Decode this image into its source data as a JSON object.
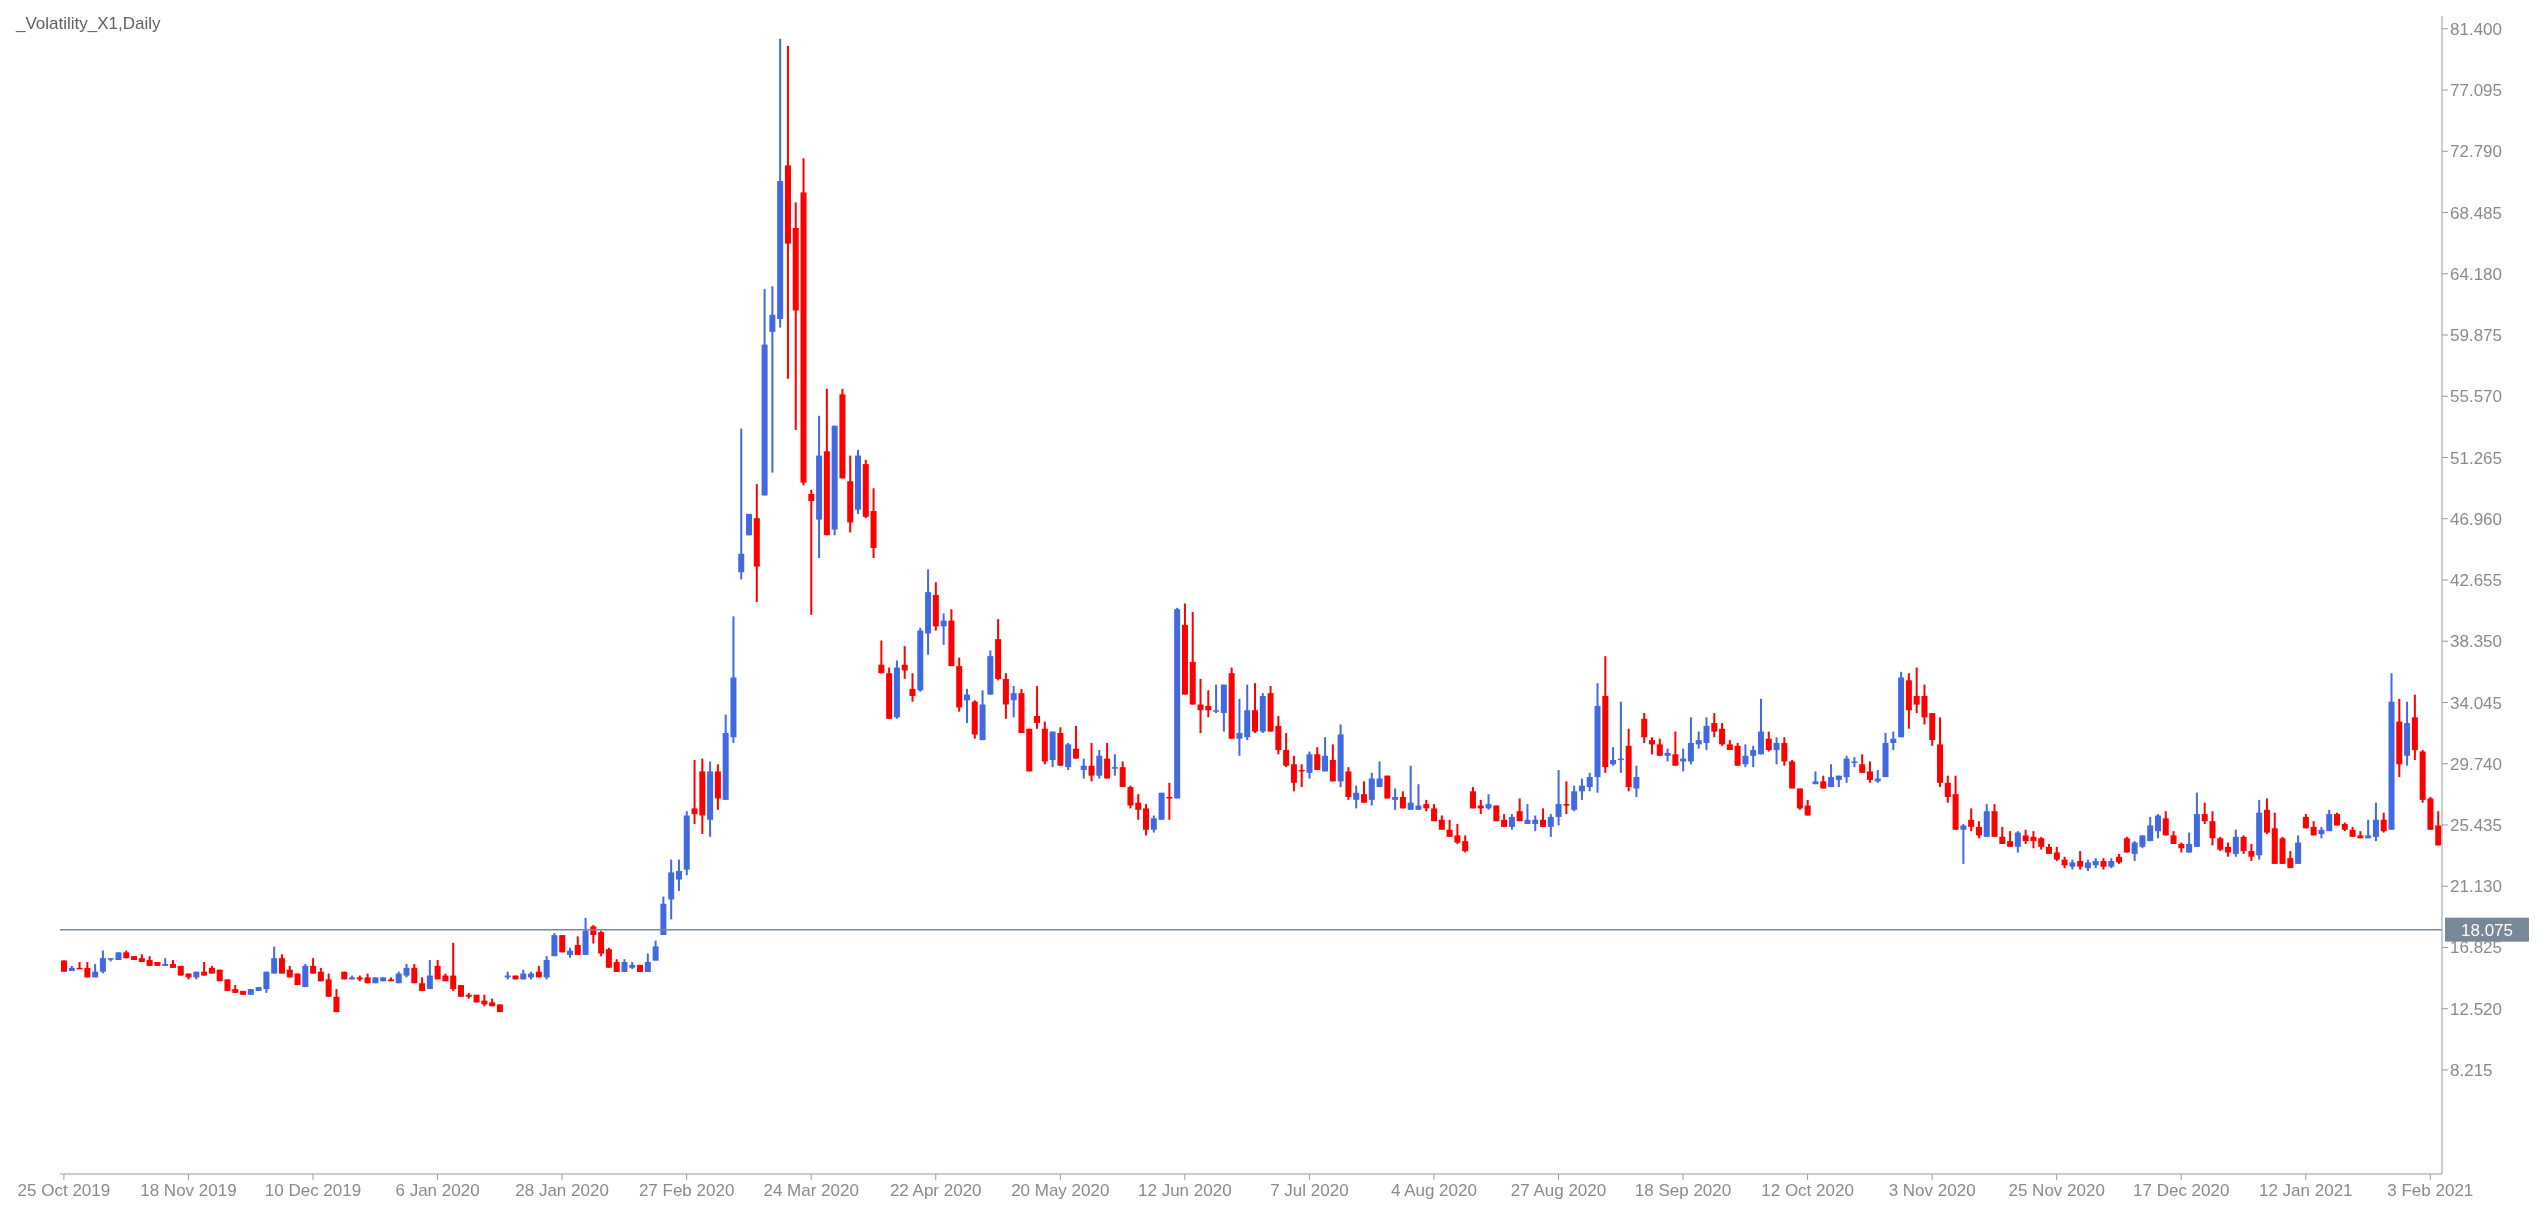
{
  "chart_data": {
    "type": "candlestick",
    "title": "_Volatility_X1,Daily",
    "categories": [
      "25 Oct 2019",
      null,
      null,
      null,
      null,
      null,
      null,
      null,
      null,
      null,
      null,
      null,
      null,
      null,
      null,
      null,
      "18 Nov 2019",
      null,
      null,
      null,
      null,
      null,
      null,
      null,
      null,
      null,
      null,
      null,
      null,
      null,
      null,
      null,
      "10 Dec 2019",
      null,
      null,
      null,
      null,
      null,
      null,
      null,
      null,
      null,
      null,
      null,
      null,
      null,
      null,
      null,
      "6 Jan 2020",
      null,
      null,
      null,
      null,
      null,
      null,
      null,
      null,
      null,
      null,
      null,
      null,
      null,
      null,
      null,
      "28 Jan 2020",
      null,
      null,
      null,
      null,
      null,
      null,
      null,
      null,
      null,
      null,
      null,
      null,
      null,
      null,
      null,
      "27 Feb 2020",
      null,
      null,
      null,
      null,
      null,
      null,
      null,
      null,
      null,
      null,
      null,
      null,
      null,
      null,
      null,
      "24 Mar 2020",
      null,
      null,
      null,
      null,
      null,
      null,
      null,
      null,
      null,
      null,
      null,
      null,
      null,
      null,
      null,
      "22 Apr 2020",
      null,
      null,
      null,
      null,
      null,
      null,
      null,
      null,
      null,
      null,
      null,
      null,
      null,
      null,
      null,
      "20 May 2020",
      null,
      null,
      null,
      null,
      null,
      null,
      null,
      null,
      null,
      null,
      null,
      null,
      null,
      null,
      null,
      "12 Jun 2020",
      null,
      null,
      null,
      null,
      null,
      null,
      null,
      null,
      null,
      null,
      null,
      null,
      null,
      null,
      null,
      "7 Jul 2020",
      null,
      null,
      null,
      null,
      null,
      null,
      null,
      null,
      null,
      null,
      null,
      null,
      null,
      null,
      null,
      "4 Aug 2020",
      null,
      null,
      null,
      null,
      null,
      null,
      null,
      null,
      null,
      null,
      null,
      null,
      null,
      null,
      null,
      "27 Aug 2020",
      null,
      null,
      null,
      null,
      null,
      null,
      null,
      null,
      null,
      null,
      null,
      null,
      null,
      null,
      null,
      "18 Sep 2020",
      null,
      null,
      null,
      null,
      null,
      null,
      null,
      null,
      null,
      null,
      null,
      null,
      null,
      null,
      null,
      "12 Oct 2020",
      null,
      null,
      null,
      null,
      null,
      null,
      null,
      null,
      null,
      null,
      null,
      null,
      null,
      null,
      null,
      "3 Nov 2020",
      null,
      null,
      null,
      null,
      null,
      null,
      null,
      null,
      null,
      null,
      null,
      null,
      null,
      null,
      null,
      "25 Nov 2020",
      null,
      null,
      null,
      null,
      null,
      null,
      null,
      null,
      null,
      null,
      null,
      null,
      null,
      null,
      null,
      "17 Dec 2020",
      null,
      null,
      null,
      null,
      null,
      null,
      null,
      null,
      null,
      null,
      null,
      null,
      null,
      null,
      null,
      "12 Jan 2021",
      null,
      null,
      null,
      null,
      null,
      null,
      null,
      null,
      null,
      null,
      null,
      null,
      null,
      null,
      null,
      "3 Feb 2021",
      null
    ],
    "ohlc": [
      [
        15.91,
        15.91,
        15.12,
        15.12
      ],
      [
        15.17,
        15.53,
        15.17,
        15.39
      ],
      [
        15.39,
        15.8,
        15.3,
        15.3
      ],
      [
        15.39,
        15.8,
        14.72,
        14.72
      ],
      [
        14.72,
        15.66,
        14.72,
        15.12
      ],
      [
        15.12,
        16.61,
        15.01,
        16.07
      ],
      [
        15.98,
        16.07,
        15.85,
        16.07
      ],
      [
        15.94,
        16.48,
        15.94,
        16.48
      ],
      [
        16.48,
        16.61,
        16.07,
        16.07
      ],
      [
        16.21,
        16.21,
        15.94,
        15.94
      ],
      [
        16.07,
        16.34,
        15.8,
        15.8
      ],
      [
        15.94,
        16.21,
        15.53,
        15.53
      ],
      [
        15.8,
        15.8,
        15.53,
        15.53
      ],
      [
        15.53,
        16.07,
        15.53,
        15.66
      ],
      [
        15.66,
        15.94,
        15.39,
        15.39
      ],
      [
        15.53,
        15.53,
        14.85,
        14.85
      ],
      [
        14.99,
        14.99,
        14.58,
        14.72
      ],
      [
        14.72,
        15.12,
        14.58,
        15.12
      ],
      [
        15.12,
        15.8,
        14.85,
        14.85
      ],
      [
        15.39,
        15.53,
        14.99,
        14.99
      ],
      [
        15.26,
        15.26,
        14.45,
        14.45
      ],
      [
        14.58,
        14.58,
        13.77,
        13.77
      ],
      [
        13.9,
        14.18,
        13.63,
        13.63
      ],
      [
        13.77,
        13.77,
        13.5,
        13.5
      ],
      [
        13.5,
        13.9,
        13.5,
        13.9
      ],
      [
        13.77,
        14.04,
        13.77,
        14.04
      ],
      [
        13.9,
        15.12,
        13.63,
        15.12
      ],
      [
        14.99,
        16.88,
        14.99,
        16.07
      ],
      [
        16.07,
        16.34,
        14.99,
        14.99
      ],
      [
        15.26,
        15.53,
        14.72,
        14.72
      ],
      [
        14.99,
        14.99,
        14.18,
        14.18
      ],
      [
        14.04,
        15.66,
        14.04,
        15.53
      ],
      [
        15.53,
        16.07,
        14.99,
        14.99
      ],
      [
        15.12,
        15.39,
        14.45,
        14.45
      ],
      [
        14.58,
        14.99,
        13.36,
        13.36
      ],
      [
        13.36,
        13.9,
        12.28,
        12.28
      ],
      [
        15.12,
        15.12,
        14.58,
        14.58
      ],
      [
        14.58,
        14.85,
        14.58,
        14.72
      ],
      [
        14.72,
        14.85,
        14.45,
        14.58
      ],
      [
        14.72,
        14.99,
        14.31,
        14.31
      ],
      [
        14.31,
        14.72,
        14.31,
        14.72
      ],
      [
        14.45,
        14.72,
        14.45,
        14.72
      ],
      [
        14.58,
        14.72,
        14.45,
        14.45
      ],
      [
        14.31,
        15.12,
        14.31,
        14.99
      ],
      [
        14.85,
        15.66,
        14.72,
        15.39
      ],
      [
        15.39,
        15.66,
        14.31,
        14.31
      ],
      [
        14.31,
        14.72,
        13.77,
        13.77
      ],
      [
        13.9,
        15.94,
        13.9,
        14.85
      ],
      [
        15.53,
        15.94,
        14.58,
        14.58
      ],
      [
        14.85,
        14.99,
        14.45,
        14.45
      ],
      [
        14.85,
        17.15,
        13.77,
        13.9
      ],
      [
        14.18,
        14.18,
        13.36,
        13.36
      ],
      [
        13.5,
        13.63,
        13.23,
        13.36
      ],
      [
        13.5,
        13.5,
        12.96,
        12.96
      ],
      [
        13.09,
        13.5,
        12.69,
        12.82
      ],
      [
        12.96,
        13.23,
        12.69,
        12.69
      ],
      [
        12.82,
        12.82,
        12.28,
        12.28
      ],
      [
        14.72,
        15.12,
        14.58,
        14.85
      ],
      [
        14.85,
        14.85,
        14.58,
        14.58
      ],
      [
        14.58,
        15.26,
        14.58,
        14.99
      ],
      [
        14.72,
        15.12,
        14.58,
        14.99
      ],
      [
        15.12,
        15.53,
        14.72,
        14.72
      ],
      [
        14.72,
        16.21,
        14.58,
        15.94
      ],
      [
        16.21,
        17.83,
        16.21,
        17.69
      ],
      [
        17.69,
        17.69,
        16.48,
        16.48
      ],
      [
        16.3,
        16.8,
        16.1,
        16.6
      ],
      [
        17.0,
        17.6,
        16.3,
        16.3
      ],
      [
        16.3,
        18.9,
        16.3,
        18.0
      ],
      [
        18.3,
        18.4,
        17.1,
        17.7
      ],
      [
        17.9,
        18.0,
        16.2,
        16.4
      ],
      [
        16.7,
        16.8,
        15.4,
        15.4
      ],
      [
        15.8,
        16.0,
        15.1,
        15.1
      ],
      [
        15.1,
        16.0,
        15.1,
        15.8
      ],
      [
        15.4,
        15.8,
        15.3,
        15.6
      ],
      [
        15.6,
        15.6,
        15.1,
        15.1
      ],
      [
        15.1,
        16.4,
        15.1,
        15.8
      ],
      [
        15.9,
        17.3,
        15.9,
        16.9
      ],
      [
        17.7,
        20.4,
        17.7,
        19.9
      ],
      [
        20.2,
        23.0,
        18.8,
        22.1
      ],
      [
        21.6,
        23.0,
        20.8,
        22.2
      ],
      [
        22.3,
        26.4,
        21.9,
        26.1
      ],
      [
        26.6,
        30.0,
        25.5,
        26.2
      ],
      [
        29.2,
        30.1,
        24.8,
        26.1
      ],
      [
        25.8,
        29.9,
        24.6,
        29.2
      ],
      [
        29.2,
        29.7,
        26.5,
        27.3
      ],
      [
        27.2,
        33.2,
        27.2,
        31.9
      ],
      [
        31.6,
        40.1,
        31.2,
        35.8
      ],
      [
        43.2,
        53.3,
        42.7,
        44.5
      ],
      [
        45.8,
        47.3,
        45.8,
        47.3
      ],
      [
        47.0,
        49.4,
        41.1,
        43.6
      ],
      [
        48.6,
        63.1,
        48.6,
        59.2
      ],
      [
        60.1,
        63.3,
        50.2,
        61.3
      ],
      [
        61.0,
        80.7,
        60.4,
        70.7
      ],
      [
        71.8,
        80.2,
        56.8,
        66.3
      ],
      [
        67.4,
        69.2,
        53.2,
        61.6
      ],
      [
        69.9,
        72.3,
        49.3,
        49.5
      ],
      [
        48.7,
        49.0,
        40.2,
        48.2
      ],
      [
        46.9,
        54.2,
        44.2,
        51.4
      ],
      [
        51.7,
        56.1,
        45.8,
        45.8
      ],
      [
        46.2,
        53.5,
        45.8,
        53.5
      ],
      [
        55.7,
        56.1,
        49.8,
        49.8
      ],
      [
        49.6,
        51.4,
        46.0,
        46.7
      ],
      [
        47.6,
        51.8,
        47.3,
        51.4
      ],
      [
        50.8,
        51.1,
        47.0,
        47.1
      ],
      [
        47.5,
        49.1,
        44.2,
        44.9
      ],
      [
        36.7,
        38.4,
        36.1,
        36.1
      ],
      [
        36.1,
        36.5,
        32.9,
        32.9
      ],
      [
        33.0,
        37.0,
        32.9,
        36.5
      ],
      [
        36.7,
        38.0,
        35.7,
        36.3
      ],
      [
        35.0,
        36.1,
        34.1,
        34.5
      ],
      [
        34.9,
        39.3,
        34.8,
        39.1
      ],
      [
        38.9,
        43.4,
        37.4,
        41.8
      ],
      [
        41.6,
        42.5,
        39.1,
        39.4
      ],
      [
        39.4,
        40.3,
        38.1,
        39.8
      ],
      [
        39.8,
        40.6,
        36.6,
        36.6
      ],
      [
        36.6,
        37.2,
        33.4,
        33.7
      ],
      [
        34.2,
        35.0,
        32.6,
        34.6
      ],
      [
        34.1,
        34.2,
        31.5,
        31.8
      ],
      [
        31.4,
        34.9,
        31.4,
        33.9
      ],
      [
        34.6,
        37.7,
        34.6,
        37.3
      ],
      [
        38.5,
        39.9,
        35.6,
        35.7
      ],
      [
        35.7,
        36.1,
        32.9,
        33.9
      ],
      [
        34.2,
        35.2,
        33.0,
        34.7
      ],
      [
        34.7,
        35.0,
        31.9,
        31.9
      ],
      [
        32.2,
        32.2,
        29.2,
        29.2
      ],
      [
        33.1,
        35.2,
        32.2,
        32.6
      ],
      [
        32.2,
        32.7,
        29.7,
        29.9
      ],
      [
        30.0,
        32.0,
        29.5,
        32.0
      ],
      [
        31.9,
        32.3,
        29.6,
        29.6
      ],
      [
        29.5,
        31.2,
        29.3,
        31.1
      ],
      [
        30.8,
        32.4,
        30.1,
        30.1
      ],
      [
        29.3,
        30.1,
        28.7,
        29.6
      ],
      [
        29.6,
        31.2,
        28.5,
        28.9
      ],
      [
        28.9,
        30.7,
        28.7,
        30.3
      ],
      [
        30.1,
        31.2,
        28.7,
        28.7
      ],
      [
        29.4,
        30.4,
        28.9,
        29.5
      ],
      [
        29.5,
        29.9,
        28.1,
        28.1
      ],
      [
        28.1,
        28.2,
        26.6,
        26.8
      ],
      [
        27.0,
        27.6,
        25.8,
        26.5
      ],
      [
        26.6,
        26.9,
        24.7,
        25.1
      ],
      [
        25.1,
        26.1,
        24.9,
        25.9
      ],
      [
        25.8,
        27.7,
        25.8,
        27.7
      ],
      [
        27.4,
        28.4,
        25.8,
        27.3
      ],
      [
        27.3,
        40.7,
        27.3,
        40.6
      ],
      [
        39.5,
        41.0,
        34.6,
        34.6
      ],
      [
        36.9,
        40.4,
        33.9,
        33.9
      ],
      [
        33.9,
        35.7,
        31.9,
        33.5
      ],
      [
        33.8,
        34.9,
        33.0,
        33.5
      ],
      [
        33.4,
        35.3,
        33.3,
        33.5
      ],
      [
        33.3,
        35.3,
        32.0,
        35.3
      ],
      [
        36.1,
        36.5,
        31.5,
        31.5
      ],
      [
        31.5,
        34.3,
        30.3,
        31.9
      ],
      [
        31.6,
        35.3,
        31.4,
        33.5
      ],
      [
        33.5,
        35.4,
        31.9,
        32.0
      ],
      [
        32.0,
        34.7,
        31.9,
        34.5
      ],
      [
        34.7,
        35.2,
        32.0,
        32.0
      ],
      [
        32.4,
        33.1,
        30.4,
        30.7
      ],
      [
        30.7,
        31.9,
        29.5,
        29.6
      ],
      [
        29.7,
        30.3,
        27.8,
        28.4
      ],
      [
        29.3,
        29.7,
        28.1,
        29.2
      ],
      [
        29.1,
        30.6,
        28.7,
        30.4
      ],
      [
        30.4,
        30.9,
        29.3,
        29.3
      ],
      [
        29.2,
        31.6,
        29.2,
        30.3
      ],
      [
        30.0,
        31.1,
        28.5,
        28.5
      ],
      [
        28.5,
        32.5,
        28.1,
        31.8
      ],
      [
        29.2,
        29.5,
        27.2,
        27.4
      ],
      [
        27.2,
        28.2,
        26.6,
        27.7
      ],
      [
        27.6,
        28.5,
        27.0,
        27.0
      ],
      [
        27.2,
        29.1,
        26.8,
        28.7
      ],
      [
        28.1,
        29.9,
        28.1,
        28.7
      ],
      [
        28.9,
        28.9,
        27.3,
        27.3
      ],
      [
        27.2,
        28.0,
        26.5,
        27.4
      ],
      [
        27.4,
        27.8,
        26.6,
        26.6
      ],
      [
        26.5,
        29.6,
        26.5,
        27.0
      ],
      [
        26.5,
        28.3,
        26.5,
        26.8
      ],
      [
        26.9,
        27.2,
        26.4,
        26.6
      ],
      [
        26.6,
        26.9,
        25.7,
        25.7
      ],
      [
        25.8,
        26.1,
        25.1,
        25.1
      ],
      [
        25.1,
        25.8,
        24.6,
        24.6
      ],
      [
        24.7,
        25.5,
        24.1,
        24.2
      ],
      [
        24.3,
        24.7,
        23.5,
        23.6
      ],
      [
        27.8,
        28.1,
        26.6,
        26.6
      ],
      [
        26.8,
        27.2,
        26.2,
        26.6
      ],
      [
        26.6,
        27.6,
        26.5,
        26.9
      ],
      [
        26.8,
        26.8,
        25.7,
        25.7
      ],
      [
        25.8,
        26.2,
        25.3,
        25.3
      ],
      [
        25.3,
        26.2,
        25.1,
        26.0
      ],
      [
        26.4,
        27.3,
        25.7,
        25.7
      ],
      [
        25.5,
        26.9,
        25.5,
        25.8
      ],
      [
        25.5,
        26.1,
        25.0,
        25.8
      ],
      [
        25.8,
        26.6,
        25.3,
        25.3
      ],
      [
        25.3,
        26.2,
        24.6,
        26.0
      ],
      [
        26.0,
        29.3,
        25.4,
        26.9
      ],
      [
        26.9,
        28.5,
        26.2,
        26.8
      ],
      [
        26.5,
        28.2,
        26.4,
        27.8
      ],
      [
        27.8,
        28.7,
        27.2,
        28.2
      ],
      [
        28.1,
        29.1,
        27.8,
        28.8
      ],
      [
        28.8,
        35.4,
        27.7,
        33.8
      ],
      [
        34.5,
        37.3,
        29.1,
        29.5
      ],
      [
        29.7,
        30.9,
        29.6,
        30.0
      ],
      [
        30.0,
        34.1,
        29.1,
        30.1
      ],
      [
        31.0,
        32.2,
        27.8,
        28.1
      ],
      [
        28.0,
        29.6,
        27.4,
        28.8
      ],
      [
        32.9,
        33.3,
        31.2,
        31.6
      ],
      [
        31.4,
        31.6,
        30.4,
        31.1
      ],
      [
        31.1,
        31.5,
        30.3,
        30.3
      ],
      [
        30.3,
        30.8,
        29.9,
        30.5
      ],
      [
        30.4,
        32.0,
        29.6,
        29.6
      ],
      [
        29.9,
        30.8,
        29.2,
        30.1
      ],
      [
        29.9,
        33.0,
        29.7,
        31.2
      ],
      [
        31.1,
        32.0,
        30.8,
        31.4
      ],
      [
        31.2,
        33.0,
        30.7,
        32.4
      ],
      [
        32.6,
        33.3,
        31.6,
        32.0
      ],
      [
        32.2,
        32.6,
        31.0,
        31.1
      ],
      [
        31.1,
        31.4,
        30.7,
        30.7
      ],
      [
        31.0,
        31.2,
        29.6,
        29.6
      ],
      [
        29.7,
        31.1,
        29.5,
        30.3
      ],
      [
        30.3,
        31.0,
        29.5,
        30.7
      ],
      [
        30.4,
        34.3,
        30.4,
        32.0
      ],
      [
        31.5,
        32.0,
        30.6,
        30.7
      ],
      [
        30.7,
        31.6,
        29.7,
        31.2
      ],
      [
        31.2,
        31.6,
        29.6,
        29.9
      ],
      [
        29.9,
        30.0,
        28.0,
        28.0
      ],
      [
        28.0,
        28.0,
        26.5,
        26.6
      ],
      [
        26.8,
        27.2,
        26.1,
        26.1
      ],
      [
        28.3,
        29.2,
        28.3,
        28.5
      ],
      [
        28.5,
        28.9,
        28.0,
        28.0
      ],
      [
        28.1,
        29.7,
        28.1,
        28.8
      ],
      [
        28.6,
        28.9,
        28.1,
        28.9
      ],
      [
        28.8,
        30.3,
        28.4,
        30.1
      ],
      [
        29.8,
        30.2,
        29.5,
        29.9
      ],
      [
        29.7,
        30.4,
        29.1,
        29.1
      ],
      [
        29.2,
        29.9,
        28.4,
        28.6
      ],
      [
        28.5,
        29.3,
        28.4,
        28.7
      ],
      [
        28.8,
        31.9,
        28.8,
        31.2
      ],
      [
        31.2,
        32.0,
        30.7,
        31.5
      ],
      [
        31.6,
        36.2,
        31.6,
        35.8
      ],
      [
        35.6,
        36.1,
        32.2,
        33.5
      ],
      [
        34.5,
        36.5,
        33.3,
        33.9
      ],
      [
        34.5,
        35.3,
        32.5,
        33.0
      ],
      [
        33.3,
        33.3,
        31.0,
        31.4
      ],
      [
        31.1,
        33.0,
        28.1,
        28.4
      ],
      [
        28.4,
        28.9,
        27.0,
        27.4
      ],
      [
        27.6,
        28.9,
        25.1,
        25.1
      ],
      [
        25.1,
        25.5,
        22.7,
        25.4
      ],
      [
        25.8,
        26.6,
        25.0,
        25.3
      ],
      [
        25.3,
        25.7,
        24.5,
        24.7
      ],
      [
        24.6,
        26.9,
        24.6,
        26.4
      ],
      [
        26.4,
        26.9,
        24.6,
        24.6
      ],
      [
        24.6,
        25.3,
        24.1,
        24.1
      ],
      [
        24.3,
        25.0,
        23.9,
        23.9
      ],
      [
        23.9,
        25.0,
        23.5,
        24.9
      ],
      [
        24.7,
        25.1,
        24.1,
        24.3
      ],
      [
        24.6,
        25.0,
        23.8,
        24.3
      ],
      [
        24.5,
        24.6,
        23.7,
        23.9
      ],
      [
        23.9,
        24.1,
        23.4,
        23.4
      ],
      [
        23.5,
        23.9,
        22.9,
        23.0
      ],
      [
        23.0,
        23.2,
        22.4,
        22.6
      ],
      [
        22.5,
        23.0,
        22.3,
        22.8
      ],
      [
        22.9,
        23.6,
        22.3,
        22.5
      ],
      [
        22.4,
        23.0,
        22.2,
        22.8
      ],
      [
        22.6,
        23.1,
        22.4,
        22.9
      ],
      [
        22.9,
        23.1,
        22.3,
        22.5
      ],
      [
        22.5,
        23.1,
        22.4,
        22.9
      ],
      [
        23.2,
        23.4,
        22.7,
        22.8
      ],
      [
        24.5,
        24.6,
        23.5,
        23.5
      ],
      [
        23.4,
        24.3,
        22.9,
        24.2
      ],
      [
        23.9,
        24.7,
        23.8,
        24.7
      ],
      [
        24.3,
        26.0,
        24.3,
        25.4
      ],
      [
        25.0,
        26.2,
        24.5,
        26.1
      ],
      [
        25.9,
        26.4,
        24.7,
        24.7
      ],
      [
        24.7,
        25.0,
        24.1,
        24.1
      ],
      [
        24.1,
        24.2,
        23.5,
        23.8
      ],
      [
        23.5,
        24.9,
        23.5,
        24.1
      ],
      [
        23.9,
        27.7,
        23.9,
        26.2
      ],
      [
        26.2,
        27.0,
        25.5,
        25.7
      ],
      [
        25.7,
        26.4,
        24.0,
        24.5
      ],
      [
        24.5,
        24.6,
        23.6,
        23.7
      ],
      [
        23.9,
        24.2,
        23.2,
        23.5
      ],
      [
        23.4,
        25.1,
        23.2,
        24.6
      ],
      [
        24.6,
        24.7,
        23.4,
        23.6
      ],
      [
        23.6,
        24.1,
        22.9,
        23.2
      ],
      [
        23.3,
        27.2,
        23.0,
        26.3
      ],
      [
        26.5,
        27.3,
        24.8,
        24.9
      ],
      [
        25.2,
        26.3,
        22.7,
        22.7
      ],
      [
        24.5,
        24.6,
        22.7,
        22.7
      ],
      [
        23.1,
        23.6,
        22.4,
        22.4
      ],
      [
        22.7,
        24.7,
        22.7,
        24.2
      ],
      [
        26.0,
        26.2,
        25.2,
        25.2
      ],
      [
        25.3,
        25.7,
        24.7,
        24.7
      ],
      [
        24.8,
        25.3,
        24.5,
        25.1
      ],
      [
        25.0,
        26.5,
        25.0,
        26.2
      ],
      [
        26.2,
        26.3,
        25.4,
        25.4
      ],
      [
        25.5,
        25.6,
        25.0,
        25.1
      ],
      [
        25.1,
        25.3,
        24.6,
        24.6
      ],
      [
        24.7,
        25.0,
        24.5,
        24.5
      ],
      [
        24.5,
        25.8,
        24.5,
        24.7
      ],
      [
        24.6,
        27.0,
        24.3,
        25.8
      ],
      [
        25.8,
        26.3,
        24.9,
        25.0
      ],
      [
        25.1,
        36.1,
        25.1,
        34.1
      ],
      [
        32.7,
        34.3,
        28.8,
        29.7
      ],
      [
        30.3,
        34.1,
        29.6,
        32.6
      ],
      [
        33.0,
        34.6,
        30.0,
        30.7
      ],
      [
        30.6,
        30.7,
        27.0,
        27.2
      ],
      [
        27.3,
        27.4,
        25.1,
        25.1
      ],
      [
        25.4,
        26.4,
        24.0,
        24.0
      ]
    ],
    "colors": [
      "#ff0000",
      "#4169e1",
      "#ff0000",
      "#ff0000",
      "#4169e1",
      "#4169e1",
      "#4169e1",
      "#4169e1",
      "#ff0000",
      "#ff0000",
      "#ff0000",
      "#ff0000",
      "#ff0000",
      "#4169e1",
      "#ff0000",
      "#ff0000",
      "#ff0000",
      "#4169e1",
      "#ff0000",
      "#ff0000",
      "#ff0000",
      "#ff0000",
      "#ff0000",
      "#ff0000",
      "#4169e1",
      "#4169e1",
      "#4169e1",
      "#4169e1",
      "#ff0000",
      "#ff0000",
      "#ff0000",
      "#4169e1",
      "#ff0000",
      "#ff0000",
      "#ff0000",
      "#ff0000",
      "#ff0000",
      "#4169e1",
      "#ff0000",
      "#ff0000",
      "#4169e1",
      "#4169e1",
      "#ff0000",
      "#4169e1",
      "#4169e1",
      "#ff0000",
      "#ff0000",
      "#4169e1",
      "#ff0000",
      "#ff0000",
      "#ff0000",
      "#ff0000",
      "#ff0000",
      "#ff0000",
      "#ff0000",
      "#ff0000",
      "#ff0000",
      "#4169e1",
      "#ff0000",
      "#4169e1",
      "#4169e1",
      "#ff0000",
      "#4169e1",
      "#4169e1",
      "#ff0000",
      "#4169e1",
      "#ff0000",
      "#4169e1",
      "#ff0000",
      "#ff0000",
      "#ff0000",
      "#ff0000",
      "#4169e1",
      "#4169e1",
      "#ff0000",
      "#4169e1",
      "#4169e1",
      "#4169e1",
      "#4169e1",
      "#4169e1",
      "#4169e1",
      "#ff0000",
      "#ff0000",
      "#4169e1",
      "#ff0000",
      "#4169e1",
      "#4169e1",
      "#4169e1",
      "#4169e1",
      "#ff0000",
      "#4169e1",
      "#4169e1",
      "#4169e1",
      "#ff0000",
      "#ff0000",
      "#ff0000",
      "#ff0000",
      "#4169e1",
      "#ff0000",
      "#4169e1",
      "#ff0000",
      "#ff0000",
      "#4169e1",
      "#ff0000",
      "#ff0000",
      "#ff0000",
      "#ff0000",
      "#4169e1",
      "#ff0000",
      "#ff0000",
      "#4169e1",
      "#4169e1",
      "#ff0000",
      "#4169e1",
      "#ff0000",
      "#ff0000",
      "#4169e1",
      "#ff0000",
      "#4169e1",
      "#4169e1",
      "#ff0000",
      "#ff0000",
      "#4169e1",
      "#ff0000",
      "#ff0000",
      "#ff0000",
      "#ff0000",
      "#4169e1",
      "#ff0000",
      "#4169e1",
      "#ff0000",
      "#4169e1",
      "#ff0000",
      "#4169e1",
      "#ff0000",
      "#4169e1",
      "#ff0000",
      "#ff0000",
      "#ff0000",
      "#ff0000",
      "#4169e1",
      "#4169e1",
      "#ff0000",
      "#4169e1",
      "#ff0000",
      "#ff0000",
      "#ff0000",
      "#ff0000",
      "#4169e1",
      "#4169e1",
      "#ff0000",
      "#4169e1",
      "#4169e1",
      "#ff0000",
      "#4169e1",
      "#ff0000",
      "#ff0000",
      "#ff0000",
      "#ff0000",
      "#ff0000",
      "#4169e1",
      "#ff0000",
      "#4169e1",
      "#ff0000",
      "#4169e1",
      "#ff0000",
      "#4169e1",
      "#ff0000",
      "#4169e1",
      "#4169e1",
      "#ff0000",
      "#4169e1",
      "#ff0000",
      "#4169e1",
      "#4169e1",
      "#ff0000",
      "#ff0000",
      "#ff0000",
      "#ff0000",
      "#ff0000",
      "#ff0000",
      "#ff0000",
      "#ff0000",
      "#4169e1",
      "#ff0000",
      "#ff0000",
      "#4169e1",
      "#ff0000",
      "#4169e1",
      "#4169e1",
      "#ff0000",
      "#4169e1",
      "#4169e1",
      "#ff0000",
      "#4169e1",
      "#4169e1",
      "#4169e1",
      "#4169e1",
      "#ff0000",
      "#4169e1",
      "#4169e1",
      "#ff0000",
      "#4169e1",
      "#ff0000",
      "#ff0000",
      "#ff0000",
      "#4169e1",
      "#ff0000",
      "#4169e1",
      "#4169e1",
      "#4169e1",
      "#4169e1",
      "#ff0000",
      "#ff0000",
      "#ff0000",
      "#ff0000",
      "#4169e1",
      "#4169e1",
      "#4169e1",
      "#ff0000",
      "#4169e1",
      "#ff0000",
      "#ff0000",
      "#ff0000",
      "#ff0000",
      "#4169e1",
      "#ff0000",
      "#4169e1",
      "#4169e1",
      "#4169e1",
      "#4169e1",
      "#ff0000",
      "#ff0000",
      "#4169e1",
      "#4169e1",
      "#4169e1",
      "#4169e1",
      "#ff0000",
      "#ff0000",
      "#ff0000",
      "#ff0000",
      "#ff0000",
      "#ff0000",
      "#ff0000",
      "#4169e1",
      "#ff0000",
      "#ff0000",
      "#4169e1",
      "#ff0000",
      "#ff0000",
      "#ff0000",
      "#4169e1",
      "#ff0000",
      "#ff0000",
      "#ff0000",
      "#ff0000",
      "#ff0000",
      "#ff0000",
      "#4169e1",
      "#ff0000",
      "#4169e1",
      "#4169e1",
      "#ff0000",
      "#4169e1",
      "#ff0000",
      "#ff0000",
      "#4169e1",
      "#4169e1",
      "#4169e1",
      "#4169e1",
      "#ff0000",
      "#ff0000",
      "#ff0000",
      "#4169e1",
      "#4169e1",
      "#ff0000",
      "#ff0000",
      "#ff0000",
      "#ff0000",
      "#4169e1",
      "#ff0000",
      "#ff0000",
      "#4169e1",
      "#ff0000",
      "#ff0000",
      "#ff0000",
      "#ff0000",
      "#4169e1",
      "#ff0000",
      "#ff0000",
      "#4169e1",
      "#4169e1",
      "#ff0000",
      "#ff0000",
      "#ff0000",
      "#ff0000",
      "#4169e1",
      "#4169e1",
      "#ff0000",
      "#4169e1",
      "#ff0000",
      "#4169e1",
      "#ff0000",
      "#ff0000",
      "#ff0000",
      "#ff0000"
    ],
    "ylim": [
      0.9,
      82.3
    ],
    "yticks": [
      8.215,
      {
        "value": 12.52,
        "label": "12.520"
      },
      16.825,
      {
        "value": 21.13,
        "label": "21.130"
      },
      25.435,
      {
        "value": 29.74,
        "label": "29.740"
      },
      34.045,
      {
        "value": 38.35,
        "label": "38.350"
      },
      42.655,
      {
        "value": 46.96,
        "label": "46.960"
      },
      51.265,
      {
        "value": 55.57,
        "label": "55.570"
      },
      59.875,
      {
        "value": 64.18,
        "label": "64.180"
      },
      68.485,
      {
        "value": 72.79,
        "label": "72.790"
      },
      77.095,
      {
        "value": 81.4,
        "label": "81.400"
      }
    ],
    "ref_lines": [
      {
        "axis": "y",
        "value": 18.075,
        "label": "18.075",
        "color": "#778899"
      }
    ]
  }
}
